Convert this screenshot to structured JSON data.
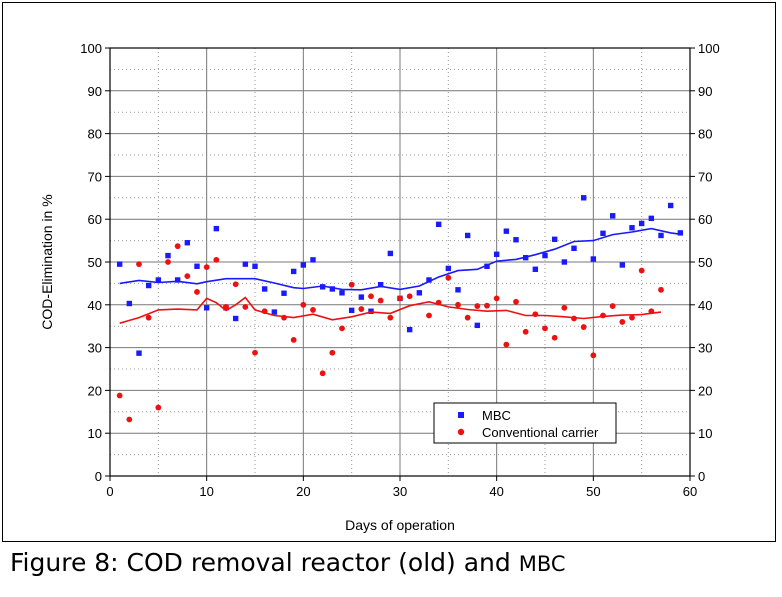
{
  "caption": {
    "main": "Figure 8: COD removal reactor (old) and ",
    "tail": "MBC"
  },
  "chart_data": {
    "type": "scatter",
    "title": "",
    "xlabel": "Days of operation",
    "ylabel": "COD-Elimination in %",
    "xlim": [
      0,
      60
    ],
    "ylim": [
      0,
      100
    ],
    "x_ticks": [
      0,
      10,
      20,
      30,
      40,
      50,
      60
    ],
    "y_ticks": [
      0,
      10,
      20,
      30,
      40,
      50,
      60,
      70,
      80,
      90,
      100
    ],
    "grid": true,
    "legend_position": "bottom-right",
    "series": [
      {
        "name": "MBC",
        "marker": "square",
        "color": "#1a1aff",
        "points": [
          [
            1,
            49.5
          ],
          [
            2,
            40.3
          ],
          [
            3,
            28.7
          ],
          [
            4,
            44.5
          ],
          [
            5,
            45.8
          ],
          [
            6,
            51.5
          ],
          [
            7,
            45.8
          ],
          [
            8,
            54.5
          ],
          [
            9,
            49
          ],
          [
            10,
            39.3
          ],
          [
            11,
            57.8
          ],
          [
            12,
            39.3
          ],
          [
            13,
            36.8
          ],
          [
            14,
            49.5
          ],
          [
            15,
            49
          ],
          [
            16,
            43.7
          ],
          [
            17,
            38.3
          ],
          [
            18,
            42.7
          ],
          [
            19,
            47.8
          ],
          [
            20,
            49.3
          ],
          [
            21,
            50.5
          ],
          [
            22,
            44.2
          ],
          [
            23,
            43.7
          ],
          [
            24,
            42.8
          ],
          [
            25,
            38.7
          ],
          [
            26,
            41.8
          ],
          [
            27,
            38.5
          ],
          [
            28,
            44.7
          ],
          [
            29,
            52
          ],
          [
            30,
            41.5
          ],
          [
            31,
            34.2
          ],
          [
            32,
            42.8
          ],
          [
            33,
            45.8
          ],
          [
            34,
            58.8
          ],
          [
            35,
            48.5
          ],
          [
            36,
            43.5
          ],
          [
            37,
            56.2
          ],
          [
            38,
            35.2
          ],
          [
            39,
            49
          ],
          [
            40,
            51.8
          ],
          [
            41,
            57.2
          ],
          [
            42,
            55.2
          ],
          [
            43,
            51
          ],
          [
            44,
            48.3
          ],
          [
            45,
            51.5
          ],
          [
            46,
            55.3
          ],
          [
            47,
            50
          ],
          [
            48,
            53.2
          ],
          [
            49,
            65
          ],
          [
            50,
            50.7
          ],
          [
            51,
            56.7
          ],
          [
            52,
            60.8
          ],
          [
            53,
            49.3
          ],
          [
            54,
            58
          ],
          [
            55,
            59
          ],
          [
            56,
            60.2
          ],
          [
            57,
            56.2
          ],
          [
            58,
            63.2
          ],
          [
            59,
            56.8
          ]
        ],
        "trend": [
          [
            1,
            45
          ],
          [
            3,
            45.7
          ],
          [
            5,
            45.2
          ],
          [
            7,
            45.5
          ],
          [
            9,
            44.9
          ],
          [
            10,
            45.4
          ],
          [
            12,
            46.1
          ],
          [
            15,
            46.1
          ],
          [
            17,
            45.1
          ],
          [
            19,
            44
          ],
          [
            20,
            43.8
          ],
          [
            22,
            44.4
          ],
          [
            24,
            43.6
          ],
          [
            26,
            43.5
          ],
          [
            28,
            44.3
          ],
          [
            30,
            43.6
          ],
          [
            32,
            44.4
          ],
          [
            34,
            46.5
          ],
          [
            36,
            48
          ],
          [
            38,
            48.3
          ],
          [
            40,
            50.2
          ],
          [
            42,
            50.6
          ],
          [
            44,
            51.7
          ],
          [
            46,
            53
          ],
          [
            48,
            54.8
          ],
          [
            50,
            55
          ],
          [
            52,
            56.4
          ],
          [
            54,
            57
          ],
          [
            56,
            57.8
          ],
          [
            58,
            56.8
          ],
          [
            59,
            56.5
          ]
        ]
      },
      {
        "name": "Conventional carrier",
        "marker": "circle",
        "color": "#ee1111",
        "points": [
          [
            1,
            18.8
          ],
          [
            2,
            13.2
          ],
          [
            3,
            49.5
          ],
          [
            4,
            37
          ],
          [
            5,
            16
          ],
          [
            6,
            50
          ],
          [
            7,
            53.7
          ],
          [
            8,
            46.7
          ],
          [
            9,
            43
          ],
          [
            10,
            48.8
          ],
          [
            11,
            50.5
          ],
          [
            12,
            39.5
          ],
          [
            13,
            44.8
          ],
          [
            14,
            39.5
          ],
          [
            15,
            28.8
          ],
          [
            16,
            38.5
          ],
          [
            18,
            37
          ],
          [
            19,
            31.8
          ],
          [
            20,
            40
          ],
          [
            21,
            38.8
          ],
          [
            22,
            24
          ],
          [
            23,
            28.8
          ],
          [
            24,
            34.5
          ],
          [
            25,
            44.7
          ],
          [
            26,
            39
          ],
          [
            27,
            42
          ],
          [
            28,
            41
          ],
          [
            29,
            37
          ],
          [
            30,
            41.5
          ],
          [
            31,
            42
          ],
          [
            33,
            37.5
          ],
          [
            34,
            40.5
          ],
          [
            35,
            46.3
          ],
          [
            36,
            40
          ],
          [
            37,
            37
          ],
          [
            38,
            39.7
          ],
          [
            39,
            39.8
          ],
          [
            40,
            41.5
          ],
          [
            41,
            30.7
          ],
          [
            42,
            40.7
          ],
          [
            43,
            33.7
          ],
          [
            44,
            37.8
          ],
          [
            45,
            34.5
          ],
          [
            46,
            32.3
          ],
          [
            47,
            39.3
          ],
          [
            48,
            36.8
          ],
          [
            49,
            34.8
          ],
          [
            50,
            28.2
          ],
          [
            51,
            37.5
          ],
          [
            52,
            39.7
          ],
          [
            53,
            36
          ],
          [
            54,
            37
          ],
          [
            55,
            48
          ],
          [
            56,
            38.5
          ],
          [
            57,
            43.5
          ]
        ],
        "trend": [
          [
            1,
            35.7
          ],
          [
            3,
            37
          ],
          [
            5,
            38.8
          ],
          [
            7,
            39
          ],
          [
            9,
            38.8
          ],
          [
            10,
            41.5
          ],
          [
            11,
            40.5
          ],
          [
            12,
            38.7
          ],
          [
            13,
            40
          ],
          [
            14,
            41.7
          ],
          [
            15,
            38.8
          ],
          [
            17,
            37.5
          ],
          [
            19,
            37
          ],
          [
            21,
            37.8
          ],
          [
            23,
            36.5
          ],
          [
            25,
            37.2
          ],
          [
            27,
            38.3
          ],
          [
            29,
            38
          ],
          [
            31,
            39.8
          ],
          [
            33,
            40.7
          ],
          [
            35,
            39.5
          ],
          [
            37,
            38.9
          ],
          [
            39,
            38.5
          ],
          [
            41,
            38.7
          ],
          [
            43,
            37.5
          ],
          [
            45,
            37.5
          ],
          [
            47,
            37.2
          ],
          [
            49,
            36.8
          ],
          [
            51,
            37.3
          ],
          [
            53,
            37.6
          ],
          [
            55,
            37.7
          ],
          [
            57,
            38.3
          ]
        ]
      }
    ]
  }
}
